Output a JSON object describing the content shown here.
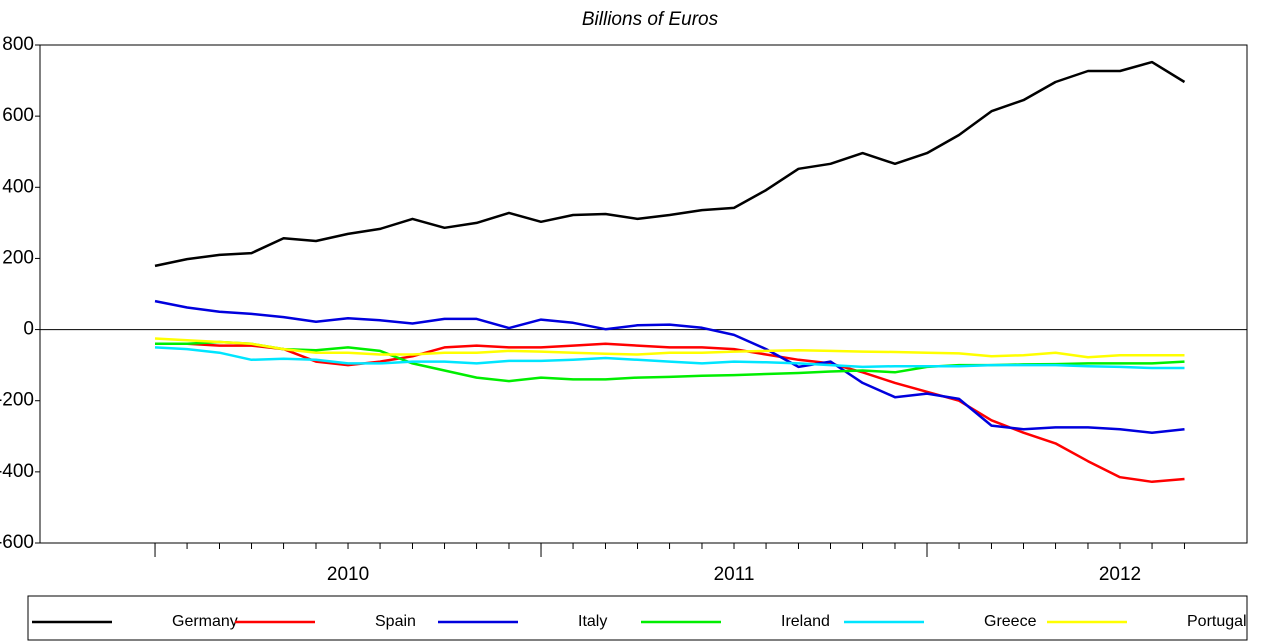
{
  "chart_data": {
    "type": "line",
    "title": "Billions of Euros",
    "x": [
      2010,
      2010.083,
      2010.167,
      2010.25,
      2010.333,
      2010.417,
      2010.5,
      2010.583,
      2010.667,
      2010.75,
      2010.833,
      2010.917,
      2011,
      2011.083,
      2011.167,
      2011.25,
      2011.333,
      2011.417,
      2011.5,
      2011.583,
      2011.667,
      2011.75,
      2011.833,
      2011.917,
      2012,
      2012.083,
      2012.167,
      2012.25,
      2012.333,
      2012.417,
      2012.5,
      2012.583,
      2012.667
    ],
    "xlim": [
      2009.702,
      2012.829
    ],
    "xticks": [
      {
        "value": 2010.5,
        "label": "2010"
      },
      {
        "value": 2011.5,
        "label": "2011"
      },
      {
        "value": 2012.5,
        "label": "2012"
      }
    ],
    "ylim": [
      -600,
      800
    ],
    "yticks": [
      -600,
      -400,
      -200,
      0,
      200,
      400,
      600,
      800
    ],
    "grid": false,
    "legend": "bottom",
    "series": [
      {
        "name": "Germany",
        "color": "#000000",
        "values": [
          179,
          198,
          210,
          215,
          257,
          249,
          269,
          283,
          311,
          286,
          300,
          328,
          303,
          322,
          325,
          311,
          322,
          336,
          342,
          392,
          452,
          466,
          496,
          466,
          496,
          547,
          614,
          645,
          696,
          727,
          727,
          752,
          696
        ]
      },
      {
        "name": "Spain",
        "color": "#ff0000",
        "values": [
          -40,
          -40,
          -45,
          -45,
          -55,
          -90,
          -100,
          -90,
          -75,
          -50,
          -45,
          -50,
          -50,
          -45,
          -40,
          -45,
          -50,
          -50,
          -55,
          -70,
          -85,
          -95,
          -120,
          -150,
          -175,
          -200,
          -255,
          -290,
          -320,
          -370,
          -415,
          -428,
          -420
        ]
      },
      {
        "name": "Italy",
        "color": "#0000dd",
        "values": [
          80,
          62,
          50,
          44,
          35,
          22,
          32,
          26,
          17,
          30,
          30,
          4,
          28,
          19,
          1,
          12,
          14,
          5,
          -15,
          -55,
          -105,
          -90,
          -150,
          -190,
          -180,
          -195,
          -270,
          -280,
          -275,
          -275,
          -280,
          -290,
          -280
        ]
      },
      {
        "name": "Ireland",
        "color": "#00ee00",
        "values": [
          -40,
          -40,
          -35,
          -40,
          -55,
          -58,
          -50,
          -60,
          -95,
          -115,
          -135,
          -145,
          -135,
          -140,
          -140,
          -135,
          -133,
          -130,
          -128,
          -125,
          -122,
          -118,
          -115,
          -120,
          -105,
          -100,
          -100,
          -98,
          -97,
          -95,
          -95,
          -95,
          -90
        ]
      },
      {
        "name": "Greece",
        "color": "#00e5ff",
        "values": [
          -50,
          -55,
          -65,
          -85,
          -82,
          -85,
          -95,
          -95,
          -90,
          -90,
          -95,
          -88,
          -88,
          -85,
          -80,
          -85,
          -90,
          -95,
          -90,
          -92,
          -95,
          -100,
          -105,
          -103,
          -103,
          -103,
          -100,
          -100,
          -100,
          -103,
          -105,
          -108,
          -108
        ]
      },
      {
        "name": "Portugal",
        "color": "#ffff00",
        "values": [
          -25,
          -30,
          -35,
          -40,
          -55,
          -65,
          -65,
          -70,
          -70,
          -65,
          -65,
          -60,
          -62,
          -65,
          -68,
          -70,
          -65,
          -65,
          -62,
          -60,
          -58,
          -60,
          -62,
          -63,
          -65,
          -67,
          -75,
          -72,
          -65,
          -78,
          -72,
          -72,
          -72
        ]
      }
    ]
  }
}
